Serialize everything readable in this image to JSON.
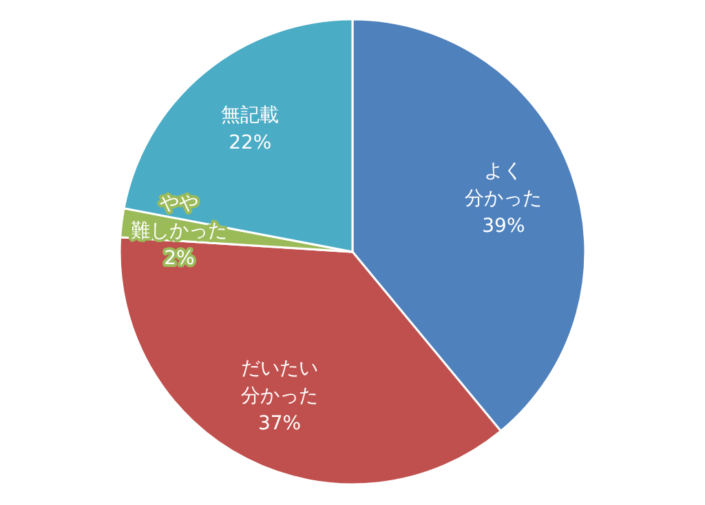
{
  "chart_data": {
    "type": "pie",
    "categories": [
      "よく分かった",
      "だいたい分かった",
      "やや難しかった",
      "無記載"
    ],
    "values": [
      39,
      37,
      2,
      22
    ],
    "value_labels": [
      "39%",
      "37%",
      "2%",
      "22%"
    ],
    "colors": [
      "#4f81bd",
      "#c0504d",
      "#9bbb59",
      "#4bacc6"
    ]
  }
}
